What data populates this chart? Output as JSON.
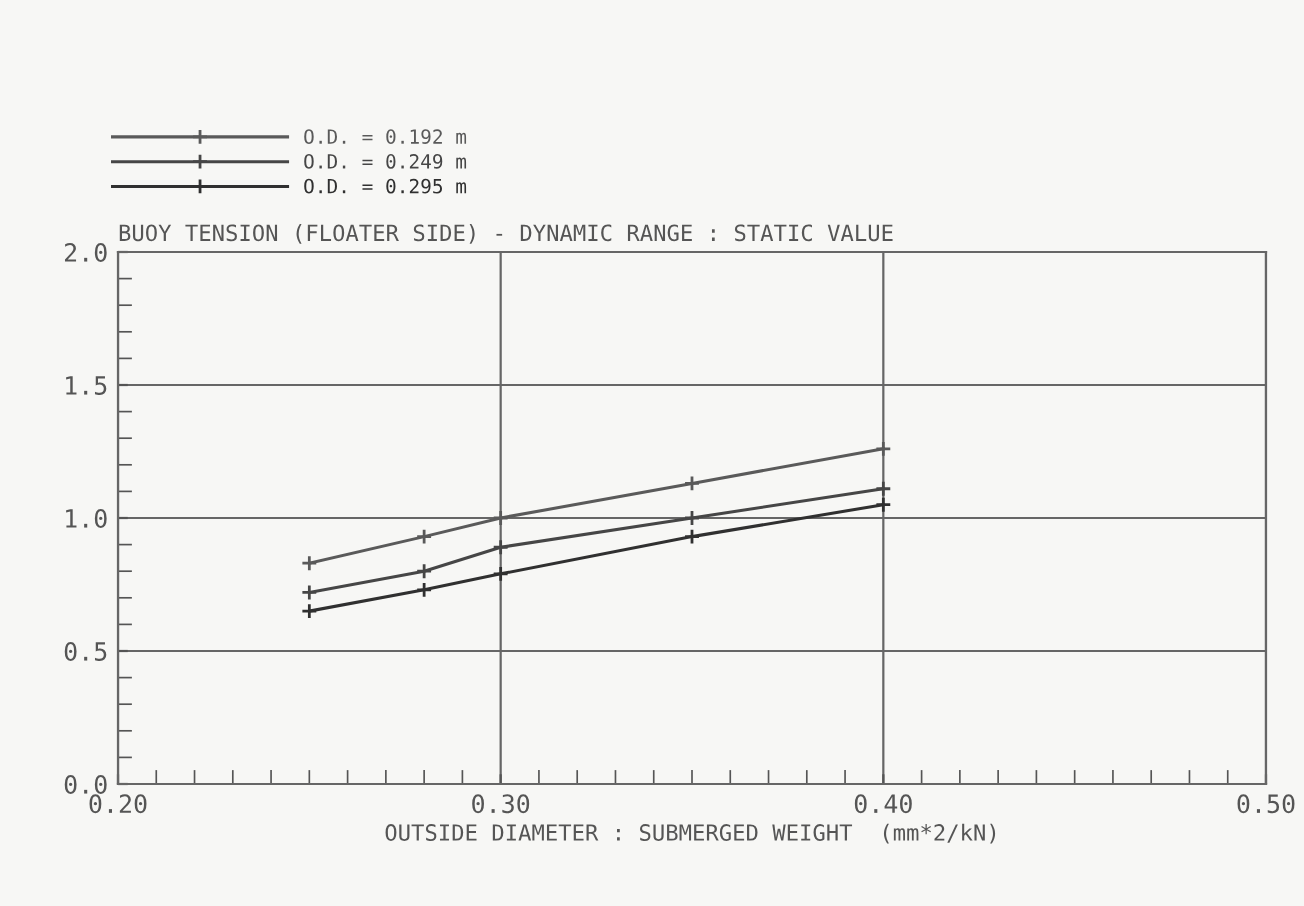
{
  "chart_data": {
    "type": "line",
    "title": "BUOY TENSION (FLOATER SIDE) - DYNAMIC RANGE : STATIC VALUE",
    "xlabel": "OUTSIDE DIAMETER : SUBMERGED WEIGHT  (mm*2/kN)",
    "x": [
      0.25,
      0.28,
      0.3,
      0.35,
      0.4
    ],
    "series": [
      {
        "name": "O.D. = 0.192 m",
        "color": "#5a5a5a",
        "values": [
          0.83,
          0.93,
          1.0,
          1.13,
          1.26
        ]
      },
      {
        "name": "O.D. = 0.249 m",
        "color": "#464646",
        "values": [
          0.72,
          0.8,
          0.89,
          1.0,
          1.11
        ]
      },
      {
        "name": "O.D. = 0.295 m",
        "color": "#303030",
        "values": [
          0.65,
          0.73,
          0.79,
          0.93,
          1.05
        ]
      }
    ],
    "xlim": [
      0.2,
      0.5
    ],
    "xticks": [
      {
        "value": 0.2,
        "label": "0.20"
      },
      {
        "value": 0.3,
        "label": "0.30"
      },
      {
        "value": 0.4,
        "label": "0.40"
      },
      {
        "value": 0.5,
        "label": "0.50"
      }
    ],
    "ylim": [
      0.0,
      2.0
    ],
    "yticks": [
      {
        "value": 0.0,
        "label": "0.0"
      },
      0.5,
      {
        "value": 1.0,
        "label": "1.0"
      },
      1.5,
      {
        "value": 2.0,
        "label": "2.0"
      }
    ],
    "grid": true,
    "legend": "top left",
    "marker": "cross",
    "line_style": "solid"
  }
}
